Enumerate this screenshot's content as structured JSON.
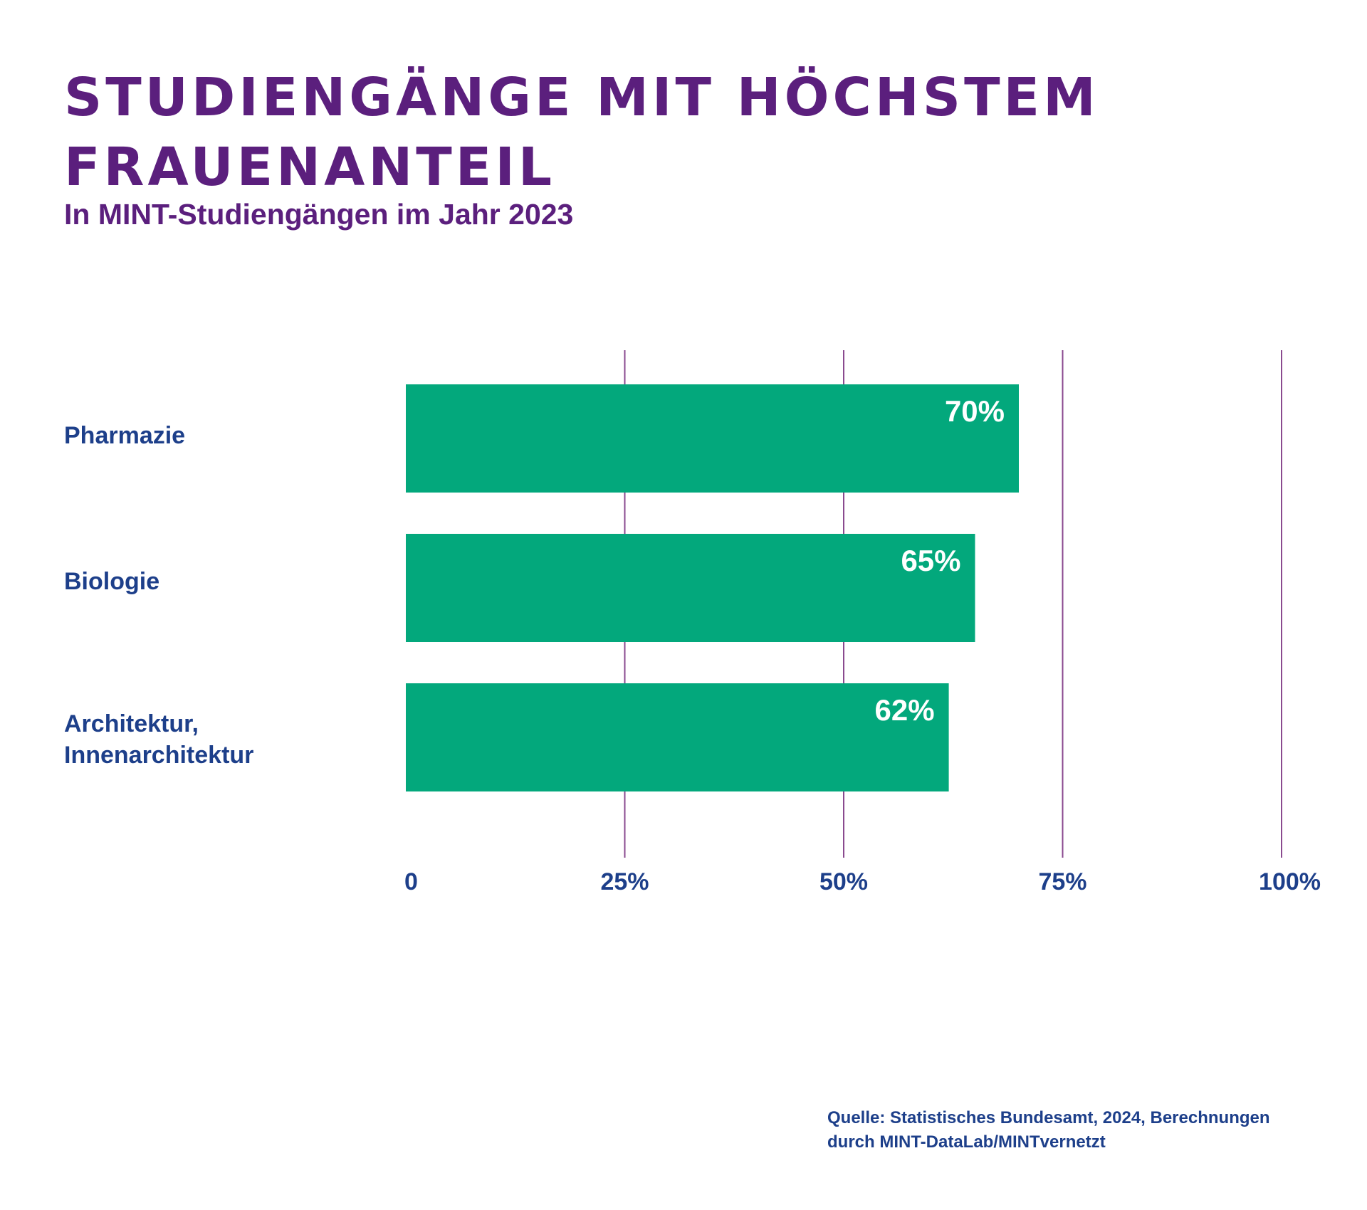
{
  "title": "Studiengänge mit höchstem Frauenanteil",
  "subtitle": "In MINT-Studiengängen im Jahr 2023",
  "source": "Quelle: Statistisches Bundesamt, 2024, Berechnungen\ndurch MINT-DataLab/MINTvernetzt",
  "colors": {
    "title": "#5b1f7d",
    "label": "#1d3f8a",
    "bar": "#03a87c",
    "gridline": "#8a4a8f",
    "value_label": "#ffffff"
  },
  "chart_data": {
    "type": "bar",
    "orientation": "horizontal",
    "title": "Studiengänge mit höchstem Frauenanteil",
    "subtitle": "In MINT-Studiengängen im Jahr 2023",
    "categories": [
      "Pharmazie",
      "Biologie",
      "Architektur,\nInnenarchitektur"
    ],
    "values": [
      70,
      65,
      62
    ],
    "value_labels": [
      "70%",
      "65%",
      "62%"
    ],
    "xlim": [
      0,
      100
    ],
    "x_ticks": [
      0,
      25,
      50,
      75,
      100
    ],
    "x_tick_labels": [
      "0",
      "25%",
      "50%",
      "75%",
      "100%"
    ],
    "grid": true,
    "legend": "none"
  }
}
